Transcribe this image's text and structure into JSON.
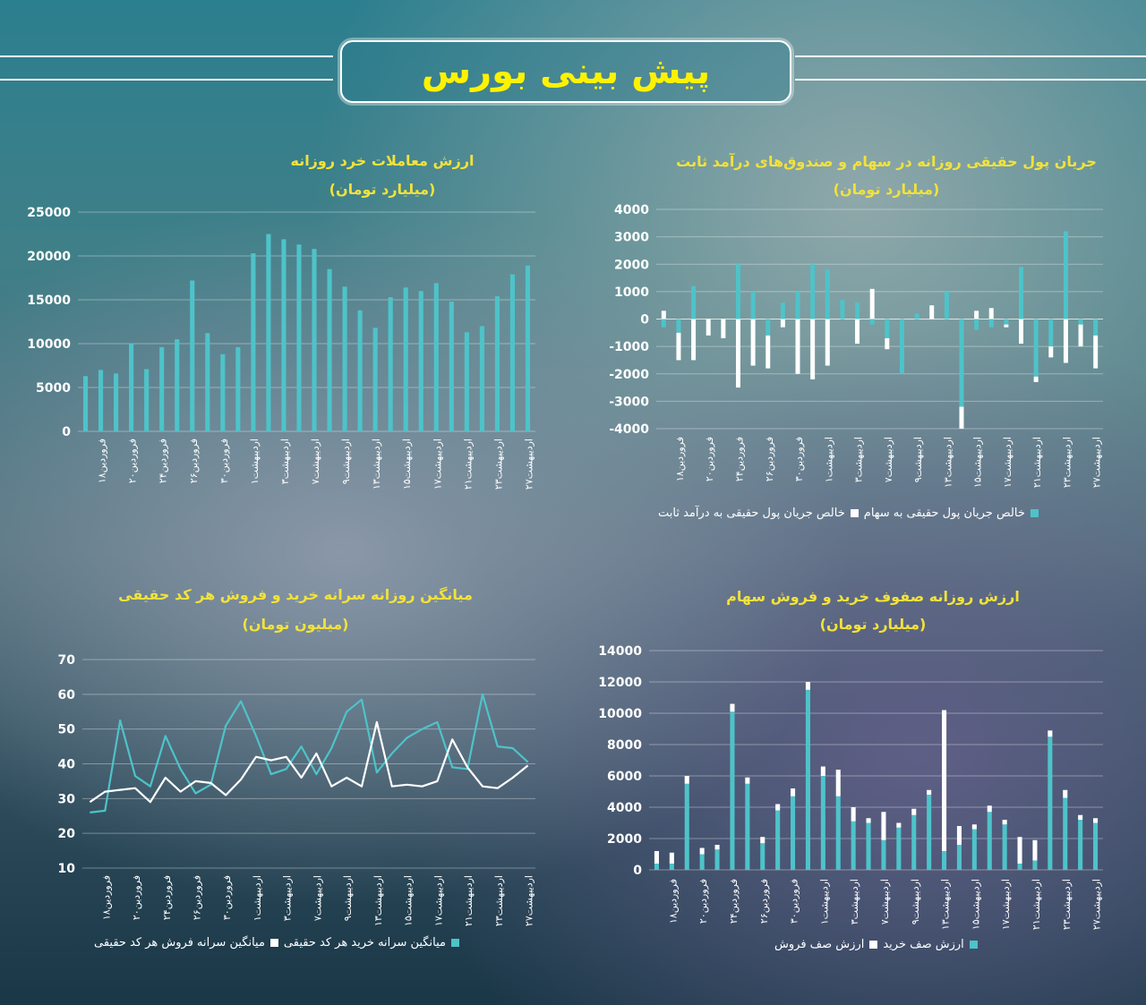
{
  "header": {
    "title": "پیش بینی بورس"
  },
  "charts": [
    {
      "id": "retail",
      "type": "bar",
      "title": "ارزش معاملات خرد روزانه",
      "subtitle": "(میلیارد تومان)",
      "ylim": [
        0,
        25000
      ],
      "yticks": [
        "0",
        "5000",
        "10000",
        "15000",
        "20000",
        "25000"
      ],
      "xtick_labels": [
        "فروردین۱۸",
        "فروردین۲۰",
        "فروردین۲۴",
        "فروردین۲۶",
        "فروردین۳۰",
        "اردیبهشت۱",
        "اردیبهشت۳",
        "اردیبهشت۷",
        "اردیبهشت۹",
        "اردیبهشت۱۳",
        "اردیبهشت۱۵",
        "اردیبهشت۱۷",
        "اردیبهشت۲۱",
        "اردیبهشت۲۳",
        "اردیبهشت۲۷"
      ],
      "values": [
        6300,
        7000,
        6600,
        10000,
        7100,
        9600,
        10500,
        17200,
        11200,
        8800,
        9600,
        20300,
        22500,
        21900,
        21300,
        20800,
        18500,
        16500,
        13800,
        11800,
        15300,
        16400,
        16000,
        16900,
        14800,
        11300,
        12000,
        15400,
        17900,
        18900
      ]
    },
    {
      "id": "netflow",
      "type": "stacked-bar",
      "title": "جریان پول حقیقی روزانه در سهام و صندوق‌های درآمد ثابت",
      "subtitle": "(میلیارد تومان)",
      "ylim": [
        -4000,
        4000
      ],
      "yticks": [
        "4000",
        "3000",
        "2000",
        "1000",
        "0",
        "-1000",
        "-2000",
        "-3000",
        "-4000"
      ],
      "xtick_labels": [
        "فروردین۱۸",
        "فروردین۲۰",
        "فروردین۲۴",
        "فروردین۲۶",
        "فروردین۳۰",
        "اردیبهشت۱",
        "اردیبهشت۳",
        "اردیبهشت۷",
        "اردیبهشت۹",
        "اردیبهشت۱۳",
        "اردیبهشت۱۵",
        "اردیبهشت۱۷",
        "اردیبهشت۲۱",
        "اردیبهشت۲۳",
        "اردیبهشت۲۷"
      ],
      "series": [
        {
          "name": "خالص جریان پول حقیقی به سهام",
          "color": "#4ec3c9",
          "values": [
            -300,
            -500,
            1200,
            0,
            0,
            2000,
            1000,
            -600,
            600,
            1000,
            2000,
            1800,
            700,
            600,
            -200,
            -700,
            -2000,
            200,
            0,
            1000,
            -3200,
            -400,
            -300,
            -200,
            1900,
            -2100,
            -1000,
            3200,
            -200,
            -600
          ]
        },
        {
          "name": "خالص جریان پول حقیقی به درآمد ثابت",
          "color": "#ffffff",
          "values": [
            300,
            -1000,
            -1500,
            -600,
            -700,
            -2500,
            -1700,
            -1200,
            -300,
            -2000,
            -2200,
            -1700,
            0,
            -900,
            1100,
            -400,
            0,
            0,
            500,
            0,
            -800,
            300,
            400,
            -100,
            -900,
            -200,
            -400,
            -1600,
            -800,
            -1200
          ]
        }
      ]
    },
    {
      "id": "percap",
      "type": "line",
      "title": "میانگین روزانه سرانه خرید و فروش هر کد حقیقی",
      "subtitle": "(میلیون تومان)",
      "ylim": [
        10,
        70
      ],
      "yticks": [
        "10",
        "20",
        "30",
        "40",
        "50",
        "60",
        "70"
      ],
      "xtick_labels": [
        "فروردین۱۸",
        "فروردین۲۰",
        "فروردین۲۴",
        "فروردین۲۶",
        "فروردین۳۰",
        "اردیبهشت۱",
        "اردیبهشت۳",
        "اردیبهشت۷",
        "اردیبهشت۹",
        "اردیبهشت۱۳",
        "اردیبهشت۱۵",
        "اردیبهشت۱۷",
        "اردیبهشت۲۱",
        "اردیبهشت۲۳",
        "اردیبهشت۲۷"
      ],
      "series": [
        {
          "name": "میانگین سرانه خرید هر کد حقیقی",
          "color": "#4ec3c9",
          "values": [
            26,
            26.5,
            52.5,
            36.5,
            33.5,
            48,
            38.5,
            31.5,
            34,
            51,
            58,
            48,
            37,
            38.5,
            45,
            37,
            44.5,
            55,
            58.5,
            37.5,
            43,
            47.5,
            50,
            52,
            39,
            38.5,
            60,
            45,
            44.5,
            40.5
          ]
        },
        {
          "name": "میانگین سرانه فروش هر کد حقیقی",
          "color": "#ffffff",
          "values": [
            29,
            32,
            32.5,
            33,
            29,
            36,
            32,
            35,
            34.5,
            31,
            35.5,
            42,
            41,
            42,
            36,
            43,
            33.5,
            36,
            33.5,
            52,
            33.5,
            34,
            33.5,
            35,
            47,
            39,
            33.5,
            33,
            36,
            39.5
          ]
        }
      ]
    },
    {
      "id": "queues",
      "type": "stacked-bar",
      "title": "ارزش روزانه صفوف خرید و فروش سهام",
      "subtitle": "(میلیارد تومان)",
      "ylim": [
        0,
        14000
      ],
      "yticks": [
        "0",
        "2000",
        "4000",
        "6000",
        "8000",
        "10000",
        "12000",
        "14000"
      ],
      "xtick_labels": [
        "فروردین۱۸",
        "فروردین۲۰",
        "فروردین۲۴",
        "فروردین۲۶",
        "فروردین۳۰",
        "اردیبهشت۱",
        "اردیبهشت۳",
        "اردیبهشت۷",
        "اردیبهشت۹",
        "اردیبهشت۱۳",
        "اردیبهشت۱۵",
        "اردیبهشت۱۷",
        "اردیبهشت۲۱",
        "اردیبهشت۲۳",
        "اردیبهشت۲۷"
      ],
      "series": [
        {
          "name": "ارزش صف خرید",
          "color": "#4ec3c9",
          "values": [
            400,
            400,
            5500,
            1000,
            1300,
            10100,
            5500,
            1700,
            3800,
            4700,
            11500,
            6000,
            4700,
            3100,
            3000,
            1900,
            2700,
            3500,
            4800,
            1200,
            1600,
            2600,
            3700,
            2900,
            400,
            600,
            8500,
            4600,
            3200,
            3000
          ]
        },
        {
          "name": "ارزش صف فروش",
          "color": "#ffffff",
          "values": [
            800,
            700,
            500,
            400,
            300,
            500,
            400,
            400,
            400,
            500,
            500,
            600,
            1700,
            900,
            300,
            1800,
            300,
            400,
            300,
            9000,
            1200,
            300,
            400,
            300,
            1700,
            1300,
            400,
            500,
            300,
            300
          ]
        }
      ]
    }
  ]
}
